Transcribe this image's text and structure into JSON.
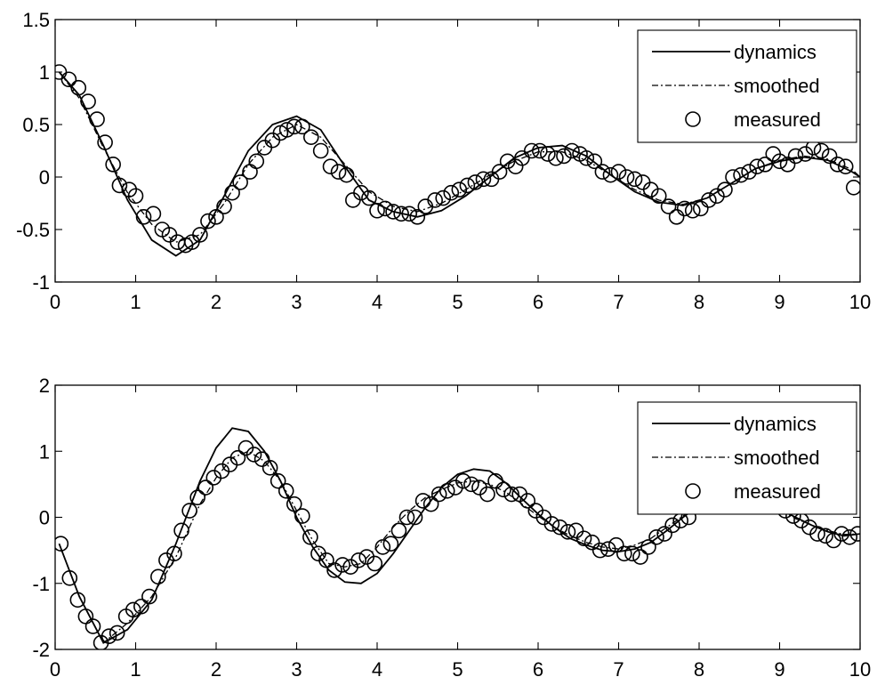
{
  "chart_data": [
    {
      "type": "line",
      "xlim": [
        0,
        10
      ],
      "ylim": [
        -1,
        1.5
      ],
      "xticks": [
        "0",
        "1",
        "2",
        "3",
        "4",
        "5",
        "6",
        "7",
        "8",
        "9",
        "10"
      ],
      "yticks": [
        "-1",
        "-0.5",
        "0",
        "0.5",
        "1",
        "1.5"
      ],
      "legend": {
        "placement": "top-right",
        "entries": [
          {
            "key": "dynamics",
            "label": "dynamics",
            "style": "solid"
          },
          {
            "key": "smoothed",
            "label": "smoothed",
            "style": "dash-dot"
          },
          {
            "key": "measured",
            "label": "measured",
            "style": "circle"
          }
        ]
      },
      "series": [
        {
          "name": "dynamics",
          "style": "solid",
          "x": [
            0.05,
            0.3,
            0.6,
            0.9,
            1.2,
            1.5,
            1.8,
            2.1,
            2.4,
            2.7,
            3.0,
            3.3,
            3.6,
            3.9,
            4.2,
            4.5,
            4.8,
            5.1,
            5.4,
            5.7,
            6.0,
            6.3,
            6.6,
            6.9,
            7.2,
            7.5,
            7.8,
            8.1,
            8.4,
            8.7,
            9.0,
            9.3,
            9.6,
            9.9,
            10.0
          ],
          "y": [
            1.0,
            0.78,
            0.3,
            -0.22,
            -0.6,
            -0.75,
            -0.6,
            -0.18,
            0.25,
            0.5,
            0.58,
            0.45,
            0.1,
            -0.22,
            -0.33,
            -0.38,
            -0.32,
            -0.18,
            0.0,
            0.18,
            0.28,
            0.3,
            0.2,
            0.02,
            -0.14,
            -0.24,
            -0.27,
            -0.2,
            -0.06,
            0.08,
            0.15,
            0.19,
            0.16,
            0.05,
            0.0
          ]
        },
        {
          "name": "smoothed",
          "style": "dash-dot",
          "x": [
            0.05,
            0.3,
            0.6,
            0.9,
            1.2,
            1.5,
            1.8,
            2.1,
            2.4,
            2.7,
            3.0,
            3.3,
            3.6,
            3.9,
            4.2,
            4.5,
            4.8,
            5.1,
            5.4,
            5.7,
            6.0,
            6.3,
            6.6,
            6.9,
            7.2,
            7.5,
            7.8,
            8.1,
            8.4,
            8.7,
            9.0,
            9.3,
            9.6,
            9.9,
            10.0
          ],
          "y": [
            1.0,
            0.75,
            0.28,
            -0.15,
            -0.45,
            -0.62,
            -0.55,
            -0.25,
            0.12,
            0.38,
            0.5,
            0.38,
            0.12,
            -0.14,
            -0.28,
            -0.33,
            -0.25,
            -0.12,
            0.02,
            0.15,
            0.24,
            0.24,
            0.16,
            0.02,
            -0.12,
            -0.22,
            -0.26,
            -0.2,
            -0.06,
            0.08,
            0.16,
            0.2,
            0.17,
            0.07,
            0.0
          ]
        },
        {
          "name": "measured",
          "style": "circle",
          "x": [
            0.05,
            0.17,
            0.29,
            0.41,
            0.52,
            0.62,
            0.72,
            0.8,
            0.92,
            1.0,
            1.1,
            1.22,
            1.33,
            1.42,
            1.52,
            1.62,
            1.7,
            1.8,
            1.9,
            2.0,
            2.1,
            2.2,
            2.3,
            2.42,
            2.5,
            2.6,
            2.7,
            2.8,
            2.88,
            2.97,
            3.07,
            3.18,
            3.3,
            3.42,
            3.52,
            3.62,
            3.7,
            3.8,
            3.9,
            4.0,
            4.1,
            4.2,
            4.3,
            4.4,
            4.5,
            4.6,
            4.72,
            4.82,
            4.92,
            5.02,
            5.12,
            5.22,
            5.32,
            5.42,
            5.52,
            5.62,
            5.72,
            5.8,
            5.92,
            6.02,
            6.12,
            6.22,
            6.32,
            6.42,
            6.52,
            6.6,
            6.7,
            6.8,
            6.9,
            7.0,
            7.1,
            7.2,
            7.3,
            7.4,
            7.5,
            7.62,
            7.72,
            7.82,
            7.92,
            8.02,
            8.12,
            8.22,
            8.32,
            8.42,
            8.52,
            8.62,
            8.72,
            8.82,
            8.92,
            9.0,
            9.1,
            9.2,
            9.32,
            9.42,
            9.52,
            9.62,
            9.72,
            9.82,
            9.92
          ],
          "y": [
            1.0,
            0.93,
            0.85,
            0.72,
            0.55,
            0.33,
            0.12,
            -0.08,
            -0.12,
            -0.18,
            -0.38,
            -0.35,
            -0.5,
            -0.55,
            -0.62,
            -0.65,
            -0.62,
            -0.55,
            -0.42,
            -0.38,
            -0.28,
            -0.15,
            -0.05,
            0.05,
            0.15,
            0.28,
            0.35,
            0.42,
            0.45,
            0.48,
            0.48,
            0.38,
            0.25,
            0.1,
            0.05,
            0.02,
            -0.22,
            -0.15,
            -0.2,
            -0.32,
            -0.3,
            -0.33,
            -0.35,
            -0.35,
            -0.38,
            -0.28,
            -0.22,
            -0.2,
            -0.15,
            -0.12,
            -0.08,
            -0.05,
            -0.02,
            -0.02,
            0.05,
            0.15,
            0.1,
            0.18,
            0.25,
            0.25,
            0.22,
            0.18,
            0.2,
            0.25,
            0.22,
            0.18,
            0.15,
            0.05,
            0.02,
            0.05,
            0.0,
            -0.02,
            -0.05,
            -0.12,
            -0.18,
            -0.28,
            -0.38,
            -0.3,
            -0.32,
            -0.3,
            -0.22,
            -0.18,
            -0.12,
            0.0,
            0.02,
            0.05,
            0.1,
            0.12,
            0.22,
            0.15,
            0.12,
            0.2,
            0.22,
            0.28,
            0.25,
            0.2,
            0.12,
            0.1,
            -0.1
          ]
        }
      ]
    },
    {
      "type": "line",
      "xlim": [
        0,
        10
      ],
      "ylim": [
        -2,
        2
      ],
      "xticks": [
        "0",
        "1",
        "2",
        "3",
        "4",
        "5",
        "6",
        "7",
        "8",
        "9",
        "10"
      ],
      "yticks": [
        "-2",
        "-1",
        "0",
        "1",
        "2"
      ],
      "legend": {
        "placement": "top-right",
        "entries": [
          {
            "key": "dynamics",
            "label": "dynamics",
            "style": "solid"
          },
          {
            "key": "smoothed",
            "label": "smoothed",
            "style": "dash-dot"
          },
          {
            "key": "measured",
            "label": "measured",
            "style": "circle"
          }
        ]
      },
      "series": [
        {
          "name": "dynamics",
          "style": "solid",
          "x": [
            0.05,
            0.3,
            0.6,
            0.9,
            1.2,
            1.5,
            1.8,
            2.0,
            2.2,
            2.4,
            2.6,
            2.8,
            3.0,
            3.2,
            3.4,
            3.6,
            3.8,
            4.0,
            4.2,
            4.4,
            4.6,
            4.8,
            5.0,
            5.2,
            5.4,
            5.6,
            5.8,
            6.0,
            6.2,
            6.4,
            6.6,
            6.8,
            7.0,
            7.2,
            7.4,
            7.6,
            7.8,
            8.0,
            8.2,
            8.4,
            8.6,
            8.8,
            9.0,
            9.2,
            9.4,
            9.6,
            9.8,
            10.0
          ],
          "y": [
            -0.4,
            -1.2,
            -1.9,
            -1.7,
            -1.25,
            -0.4,
            0.55,
            1.05,
            1.35,
            1.3,
            1.0,
            0.55,
            0.0,
            -0.45,
            -0.8,
            -0.98,
            -1.0,
            -0.85,
            -0.55,
            -0.2,
            0.15,
            0.45,
            0.65,
            0.73,
            0.7,
            0.52,
            0.28,
            0.05,
            -0.15,
            -0.32,
            -0.42,
            -0.5,
            -0.52,
            -0.48,
            -0.38,
            -0.2,
            0.0,
            0.18,
            0.32,
            0.4,
            0.38,
            0.28,
            0.12,
            0.0,
            -0.12,
            -0.22,
            -0.28,
            -0.25
          ]
        },
        {
          "name": "smoothed",
          "style": "dash-dot",
          "x": [
            0.05,
            0.3,
            0.6,
            0.9,
            1.2,
            1.5,
            1.8,
            2.0,
            2.2,
            2.4,
            2.6,
            2.8,
            3.0,
            3.2,
            3.4,
            3.6,
            3.8,
            4.0,
            4.2,
            4.4,
            4.6,
            4.8,
            5.0,
            5.2,
            5.4,
            5.6,
            5.8,
            6.0,
            6.2,
            6.4,
            6.6,
            6.8,
            7.0,
            7.2,
            7.4,
            7.6,
            7.8,
            8.0,
            8.2,
            8.4,
            8.6,
            8.8,
            9.0,
            9.2,
            9.4,
            9.6,
            9.8,
            10.0
          ],
          "y": [
            -0.4,
            -1.2,
            -1.9,
            -1.6,
            -1.2,
            -0.6,
            0.2,
            0.6,
            0.9,
            1.0,
            0.85,
            0.55,
            0.1,
            -0.35,
            -0.7,
            -0.75,
            -0.7,
            -0.45,
            -0.15,
            0.1,
            0.3,
            0.42,
            0.52,
            0.55,
            0.5,
            0.38,
            0.2,
            0.02,
            -0.15,
            -0.28,
            -0.38,
            -0.45,
            -0.48,
            -0.42,
            -0.32,
            -0.15,
            0.02,
            0.18,
            0.3,
            0.35,
            0.32,
            0.22,
            0.1,
            -0.02,
            -0.12,
            -0.2,
            -0.26,
            -0.25
          ]
        },
        {
          "name": "measured",
          "style": "circle",
          "x": [
            0.07,
            0.18,
            0.28,
            0.38,
            0.47,
            0.57,
            0.67,
            0.77,
            0.88,
            0.97,
            1.07,
            1.17,
            1.28,
            1.38,
            1.48,
            1.57,
            1.67,
            1.77,
            1.87,
            1.97,
            2.07,
            2.17,
            2.27,
            2.37,
            2.47,
            2.57,
            2.67,
            2.77,
            2.87,
            2.97,
            3.07,
            3.17,
            3.27,
            3.37,
            3.47,
            3.57,
            3.67,
            3.77,
            3.87,
            3.97,
            4.07,
            4.17,
            4.27,
            4.37,
            4.47,
            4.57,
            4.67,
            4.77,
            4.87,
            4.97,
            5.07,
            5.17,
            5.27,
            5.37,
            5.47,
            5.57,
            5.67,
            5.77,
            5.87,
            5.97,
            6.07,
            6.17,
            6.27,
            6.37,
            6.47,
            6.57,
            6.67,
            6.77,
            6.87,
            6.97,
            7.07,
            7.17,
            7.27,
            7.37,
            7.47,
            7.57,
            7.67,
            7.77,
            7.87,
            9.07,
            9.17,
            9.27,
            9.37,
            9.47,
            9.57,
            9.67,
            9.77,
            9.87,
            9.97
          ],
          "y": [
            -0.4,
            -0.92,
            -1.25,
            -1.5,
            -1.65,
            -1.9,
            -1.8,
            -1.75,
            -1.5,
            -1.4,
            -1.35,
            -1.2,
            -0.9,
            -0.65,
            -0.55,
            -0.2,
            0.1,
            0.3,
            0.45,
            0.6,
            0.7,
            0.8,
            0.9,
            1.05,
            0.95,
            0.88,
            0.75,
            0.55,
            0.4,
            0.2,
            0.02,
            -0.3,
            -0.55,
            -0.65,
            -0.8,
            -0.72,
            -0.75,
            -0.65,
            -0.6,
            -0.7,
            -0.45,
            -0.4,
            -0.2,
            0.0,
            0.0,
            0.25,
            0.2,
            0.35,
            0.4,
            0.45,
            0.55,
            0.5,
            0.45,
            0.35,
            0.55,
            0.42,
            0.35,
            0.35,
            0.25,
            0.1,
            0.0,
            -0.1,
            -0.15,
            -0.22,
            -0.2,
            -0.32,
            -0.38,
            -0.5,
            -0.48,
            -0.42,
            -0.55,
            -0.55,
            -0.6,
            -0.45,
            -0.3,
            -0.25,
            -0.12,
            -0.05,
            0.0,
            0.1,
            0.02,
            -0.05,
            -0.15,
            -0.25,
            -0.28,
            -0.35,
            -0.25,
            -0.3,
            -0.25
          ]
        }
      ]
    }
  ]
}
